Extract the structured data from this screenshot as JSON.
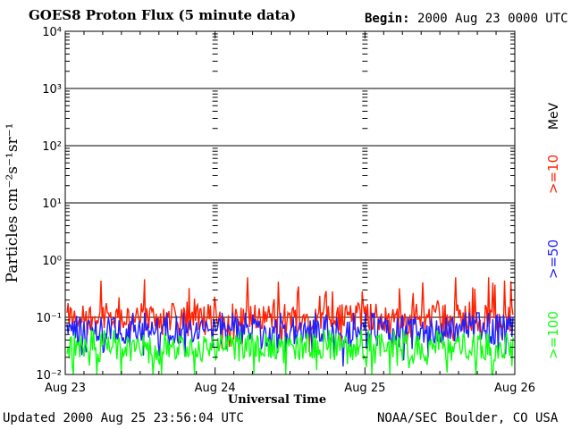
{
  "header": {
    "title": "GOES8 Proton Flux (5 minute data)",
    "begin_label": "Begin:",
    "begin_value": "2000 Aug 23 0000 UTC"
  },
  "footer": {
    "updated_label": "Updated",
    "updated_value": "2000 Aug 25 23:56:04 UTC",
    "credit": "NOAA/SEC Boulder, CO USA"
  },
  "chart_data": {
    "type": "line",
    "title": "GOES8 Proton Flux (5 minute data)",
    "xlabel": "Universal Time",
    "ylabel": "Particles cm⁻²s⁻¹sr⁻¹",
    "yscale": "log",
    "ylim": [
      0.01,
      10000
    ],
    "y_ticks": [
      0.01,
      0.1,
      1,
      10,
      100,
      1000,
      10000
    ],
    "y_tick_labels": [
      "10⁻²",
      "10⁻¹",
      "10⁰",
      "10¹",
      "10²",
      "10³",
      "10⁴"
    ],
    "x_tick_labels": [
      "Aug 23",
      "Aug 24",
      "Aug 25",
      "Aug 26"
    ],
    "grid": "horizontal at decades",
    "legend_unit": "MeV",
    "series": [
      {
        "name": ">=10",
        "color": "#ff2000",
        "baseline": 0.1,
        "peak_max": 0.5
      },
      {
        "name": ">=50",
        "color": "#2020ff",
        "baseline": 0.06,
        "peak_max": 0.12
      },
      {
        "name": ">=100",
        "color": "#10ff10",
        "baseline": 0.03,
        "peak_max": 0.06
      }
    ]
  }
}
